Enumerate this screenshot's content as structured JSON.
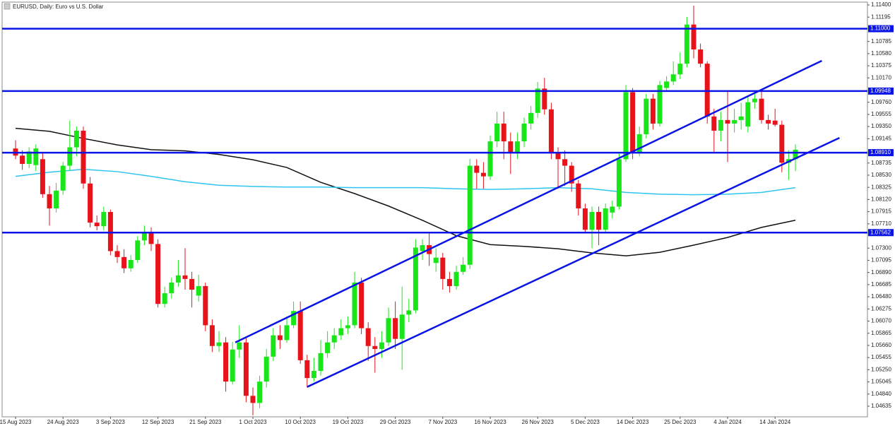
{
  "chart_data": {
    "type": "candlestick",
    "title": "EURUSD, Daily:  Euro vs U.S. Dollar",
    "up_color": "#19e619",
    "down_color": "#e8131a",
    "categories": [
      "15 Aug 2023",
      null,
      null,
      null,
      null,
      null,
      null,
      "24 Aug 2023",
      null,
      null,
      null,
      null,
      null,
      null,
      "3 Sep 2023",
      null,
      null,
      null,
      null,
      null,
      null,
      "12 Sep 2023",
      null,
      null,
      null,
      null,
      null,
      null,
      "21 Sep 2023",
      null,
      null,
      null,
      null,
      null,
      null,
      "1 Oct 2023",
      null,
      null,
      null,
      null,
      null,
      null,
      "10 Oct 2023",
      null,
      null,
      null,
      null,
      null,
      null,
      "19 Oct 2023",
      null,
      null,
      null,
      null,
      null,
      null,
      "29 Oct 2023",
      null,
      null,
      null,
      null,
      null,
      null,
      "7 Nov 2023",
      null,
      null,
      null,
      null,
      null,
      null,
      "16 Nov 2023",
      null,
      null,
      null,
      null,
      null,
      null,
      "26 Nov 2023",
      null,
      null,
      null,
      null,
      null,
      null,
      "5 Dec 2023",
      null,
      null,
      null,
      null,
      null,
      null,
      "14 Dec 2023",
      null,
      null,
      null,
      null,
      null,
      null,
      "25 Dec 2023",
      null,
      null,
      null,
      null,
      null,
      null,
      "4 Jan 2024",
      null,
      null,
      null,
      null,
      null,
      null,
      "14 Jan 2024",
      null,
      null,
      null
    ],
    "open": [
      1.0898,
      1.0886,
      1.0872,
      1.087,
      1.088,
      1.0821,
      1.0797,
      1.0827,
      1.0869,
      1.09,
      1.0928,
      1.0839,
      1.0773,
      1.0767,
      1.0791,
      1.0725,
      1.0715,
      1.0696,
      1.071,
      1.0743,
      1.0755,
      1.0737,
      1.0636,
      1.0654,
      1.0672,
      1.0684,
      1.0678,
      1.065,
      1.0666,
      1.06,
      1.0565,
      1.0571,
      1.0505,
      1.0559,
      1.0571,
      1.0481,
      1.0469,
      1.0505,
      1.0547,
      1.0583,
      1.0575,
      1.06,
      1.0624,
      1.0541,
      1.0511,
      1.0523,
      1.0553,
      1.0571,
      1.0583,
      1.0595,
      1.06,
      1.0672,
      1.0595,
      1.0565,
      1.056,
      1.0571,
      1.0612,
      1.0577,
      1.0618,
      1.0625,
      1.0725,
      1.0735,
      1.0705,
      1.0714,
      1.0678,
      1.0666,
      1.069,
      1.0702,
      1.0869,
      1.0857,
      1.0851,
      1.091,
      1.094,
      1.091,
      1.0892,
      1.091,
      1.094,
      1.0958,
      1.0999,
      1.0964,
      1.0892,
      1.088,
      1.0869,
      1.0839,
      1.0797,
      1.0761,
      1.0791,
      1.0761,
      1.079,
      1.08,
      1.088,
      1.0993,
      1.0892,
      1.0922,
      1.0982,
      1.094,
      1.1,
      1.1011,
      1.1023,
      1.1041,
      1.1107,
      1.1065,
      1.1041,
      1.0952,
      1.0928,
      1.0946,
      1.094,
      1.0946,
      1.0935,
      1.0976,
      1.0982,
      1.0946,
      1.0945,
      1.0938,
      1.0874,
      1.088
    ],
    "high": [
      1.0912,
      1.0895,
      1.09,
      1.0905,
      1.089,
      1.0835,
      1.084,
      1.0875,
      1.0945,
      1.0935,
      1.0935,
      1.085,
      1.0785,
      1.08,
      1.0795,
      1.0735,
      1.0728,
      1.0718,
      1.075,
      1.0768,
      1.0765,
      1.0745,
      1.0665,
      1.068,
      1.071,
      1.073,
      1.069,
      1.0685,
      1.0672,
      1.061,
      1.059,
      1.058,
      1.0572,
      1.06,
      1.058,
      1.0495,
      1.0515,
      1.056,
      1.0595,
      1.06,
      1.0615,
      1.064,
      1.064,
      1.055,
      1.0545,
      1.0575,
      1.059,
      1.0595,
      1.061,
      1.0615,
      1.069,
      1.068,
      1.0605,
      1.058,
      1.059,
      1.063,
      1.064,
      1.0665,
      1.0645,
      1.0745,
      1.0745,
      1.0755,
      1.073,
      1.0722,
      1.069,
      1.07,
      1.0715,
      1.088,
      1.088,
      1.0875,
      1.092,
      1.096,
      1.096,
      1.0925,
      1.0925,
      1.095,
      1.097,
      1.101,
      1.1017,
      1.0975,
      1.09,
      1.0895,
      1.0875,
      1.0845,
      1.0805,
      1.08,
      1.08,
      1.0805,
      1.081,
      1.089,
      1.1005,
      1.1,
      1.0935,
      1.099,
      1.099,
      1.1012,
      1.102,
      1.1045,
      1.106,
      1.112,
      1.1139,
      1.1075,
      1.1045,
      1.0965,
      1.096,
      1.0995,
      1.0965,
      1.0975,
      1.0985,
      1.099,
      1.0995,
      1.0955,
      1.0965,
      1.0945,
      1.0895,
      1.0905
    ],
    "low": [
      1.088,
      1.0862,
      1.0865,
      1.086,
      1.0815,
      1.0768,
      1.079,
      1.082,
      1.086,
      1.0885,
      1.083,
      1.0765,
      1.076,
      1.076,
      1.0718,
      1.0705,
      1.0688,
      1.069,
      1.0705,
      1.0735,
      1.0725,
      1.063,
      1.063,
      1.0645,
      1.0665,
      1.066,
      1.063,
      1.064,
      1.059,
      1.0555,
      1.0555,
      1.0488,
      1.05,
      1.0545,
      1.047,
      1.0448,
      1.046,
      1.0495,
      1.054,
      1.056,
      1.057,
      1.0595,
      1.0535,
      1.0495,
      1.0505,
      1.0515,
      1.0545,
      1.056,
      1.0575,
      1.0585,
      1.0595,
      1.0585,
      1.054,
      1.052,
      1.0545,
      1.0565,
      1.056,
      1.0525,
      1.0605,
      1.062,
      1.071,
      1.07,
      1.069,
      1.066,
      1.0655,
      1.066,
      1.0685,
      1.0695,
      1.083,
      1.083,
      1.0845,
      1.09,
      1.088,
      1.0855,
      1.088,
      1.09,
      1.093,
      1.095,
      1.0955,
      1.088,
      1.083,
      1.0835,
      1.0825,
      1.0785,
      1.0755,
      1.073,
      1.0735,
      1.0755,
      1.078,
      1.0795,
      1.0875,
      1.088,
      1.0885,
      1.0915,
      1.093,
      1.0935,
      1.0995,
      1.1005,
      1.1015,
      1.1035,
      1.105,
      1.1035,
      1.094,
      1.089,
      1.091,
      1.0875,
      1.0925,
      1.093,
      1.0925,
      1.0965,
      1.094,
      1.093,
      1.0935,
      1.0858,
      1.0845,
      1.086
    ],
    "close": [
      1.0886,
      1.0872,
      1.0893,
      1.0898,
      1.0821,
      1.0797,
      1.0827,
      1.0869,
      1.09,
      1.0928,
      1.0839,
      1.0773,
      1.0767,
      1.0791,
      1.0725,
      1.0715,
      1.0696,
      1.071,
      1.0743,
      1.0755,
      1.0737,
      1.0636,
      1.0654,
      1.0672,
      1.0684,
      1.0678,
      1.066,
      1.0666,
      1.06,
      1.0565,
      1.0571,
      1.0505,
      1.0559,
      1.0571,
      1.0481,
      1.0469,
      1.0505,
      1.0547,
      1.0583,
      1.0575,
      1.06,
      1.0624,
      1.0541,
      1.0511,
      1.0523,
      1.0553,
      1.0571,
      1.0583,
      1.0595,
      1.06,
      1.0672,
      1.0595,
      1.0565,
      1.056,
      1.0571,
      1.0612,
      1.0577,
      1.0618,
      1.0625,
      1.0731,
      1.0735,
      1.072,
      1.0714,
      1.0678,
      1.0666,
      1.069,
      1.0702,
      1.0869,
      1.0857,
      1.0851,
      1.091,
      1.094,
      1.091,
      1.0892,
      1.091,
      1.094,
      1.0958,
      1.0999,
      1.0964,
      1.0892,
      1.088,
      1.0869,
      1.0839,
      1.0797,
      1.0761,
      1.0791,
      1.0761,
      1.0797,
      1.08,
      1.088,
      1.0993,
      1.0892,
      1.0922,
      1.0982,
      1.094,
      1.1005,
      1.1011,
      1.1023,
      1.1041,
      1.1107,
      1.1065,
      1.1041,
      1.0952,
      1.0928,
      1.0946,
      1.094,
      1.0946,
      1.0952,
      1.0976,
      1.0982,
      1.0946,
      1.094,
      1.0938,
      1.0874,
      1.088,
      1.0896
    ],
    "lines": [
      {
        "color": "#111111",
        "x": [
          0,
          5,
          10,
          15,
          20,
          25,
          30,
          35,
          40,
          45,
          50,
          55,
          60,
          65,
          70,
          75,
          80,
          85,
          90,
          95,
          100,
          105,
          110,
          115
        ],
        "values": [
          1.0932,
          1.0927,
          1.0915,
          1.0904,
          1.0896,
          1.0894,
          1.0888,
          1.0879,
          1.0866,
          1.0841,
          1.0822,
          1.0801,
          1.0777,
          1.0751,
          1.0736,
          1.0733,
          1.0729,
          1.0722,
          1.0717,
          1.0723,
          1.0735,
          1.0748,
          1.0765,
          1.0777
        ]
      },
      {
        "color": "#2ec4f0",
        "x": [
          0,
          5,
          10,
          15,
          20,
          25,
          30,
          35,
          40,
          45,
          50,
          55,
          60,
          65,
          70,
          75,
          80,
          85,
          90,
          95,
          100,
          105,
          110,
          115
        ],
        "values": [
          1.0851,
          1.0858,
          1.0863,
          1.0859,
          1.0851,
          1.0842,
          1.0836,
          1.0834,
          1.0833,
          1.0833,
          1.0832,
          1.0832,
          1.0832,
          1.083,
          1.0829,
          1.083,
          1.0832,
          1.083,
          1.0824,
          1.0821,
          1.082,
          1.0821,
          1.0824,
          1.0832
        ]
      }
    ],
    "trendlines": [
      {
        "color": "#0a14e6",
        "x": [
          32.4,
          118.9
        ],
        "values": [
          1.0571,
          1.1046
        ]
      },
      {
        "color": "#0a14e6",
        "x": [
          43.0,
          121.5
        ],
        "values": [
          1.0496,
          1.0916
        ]
      }
    ],
    "hlines": [
      {
        "color": "#0a14e6",
        "value": 1.11,
        "label": "1.11000"
      },
      {
        "color": "#0a14e6",
        "value": 1.09948,
        "label": "1.09948"
      },
      {
        "color": "#0a14e6",
        "value": 1.0891,
        "label": "1.08910"
      },
      {
        "color": "#0a14e6",
        "value": 1.07562,
        "label": "1.07562"
      }
    ],
    "ylim": [
      1.04456,
      1.11448
    ],
    "yticks": [
      {
        "value": 1.114,
        "label": "1.11400"
      },
      1.11195,
      1.10785,
      {
        "value": 1.1058,
        "label": "1.10580"
      },
      1.10375,
      {
        "value": 1.1017,
        "label": "1.10170"
      },
      {
        "value": 1.0976,
        "label": "1.09760"
      },
      1.09555,
      {
        "value": 1.0935,
        "label": "1.09350"
      },
      1.09145,
      1.08735,
      {
        "value": 1.0853,
        "label": "1.08530"
      },
      1.08325,
      {
        "value": 1.0812,
        "label": "1.08120"
      },
      1.07915,
      {
        "value": 1.0771,
        "label": "1.07710"
      },
      {
        "value": 1.073,
        "label": "1.07300"
      },
      1.07095,
      {
        "value": 1.0689,
        "label": "1.06890"
      },
      1.06685,
      {
        "value": 1.0648,
        "label": "1.06480"
      },
      1.06275,
      {
        "value": 1.0607,
        "label": "1.06070"
      },
      1.05865,
      {
        "value": 1.0566,
        "label": "1.05660"
      },
      1.05455,
      {
        "value": 1.0525,
        "label": "1.05250"
      },
      1.05045,
      {
        "value": 1.0484,
        "label": "1.04840"
      },
      1.04635
    ]
  }
}
